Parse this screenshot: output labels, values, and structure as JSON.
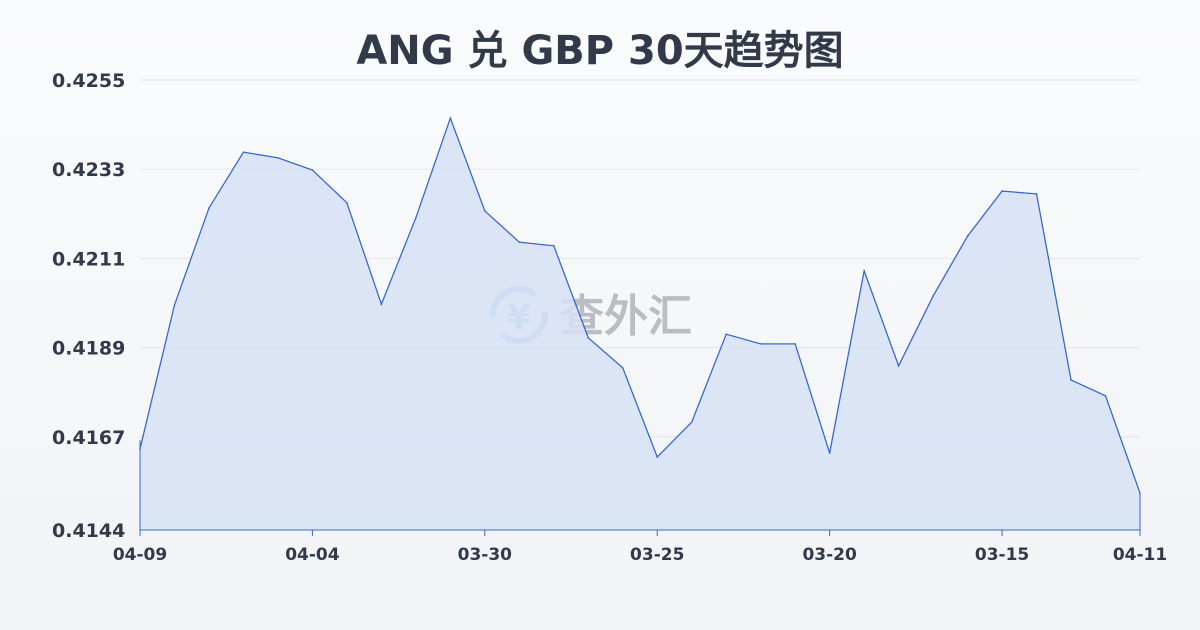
{
  "title": "ANG 兑 GBP 30天趋势图",
  "watermark": "查外汇",
  "colors": {
    "line": "#3a67c9",
    "fill": "#d6e2f6",
    "grid": "#e3e6ea",
    "text": "#323a4a"
  },
  "chart_data": {
    "type": "area",
    "title": "ANG 兑 GBP 30天趋势图",
    "xlabel": "",
    "ylabel": "",
    "ylim": [
      0.4144,
      0.4255
    ],
    "yticks": [
      "0.4144",
      "0.4167",
      "0.4189",
      "0.4211",
      "0.4233",
      "0.4255"
    ],
    "xtick_labels": [
      {
        "index": 0,
        "label": "04-09"
      },
      {
        "index": 5,
        "label": "04-04"
      },
      {
        "index": 10,
        "label": "03-30"
      },
      {
        "index": 15,
        "label": "03-25"
      },
      {
        "index": 20,
        "label": "03-20"
      },
      {
        "index": 25,
        "label": "03-15"
      },
      {
        "index": 29,
        "label": "04-11"
      }
    ],
    "grid": "horizontal",
    "values": [
      0.4164,
      0.41995,
      0.42234,
      0.42372,
      0.42358,
      0.42328,
      0.42247,
      0.41997,
      0.4221,
      0.42456,
      0.42227,
      0.4215,
      0.42141,
      0.41914,
      0.4184,
      0.4162,
      0.41706,
      0.41923,
      0.41899,
      0.41899,
      0.4163,
      0.42079,
      0.41845,
      0.42017,
      0.42165,
      0.42276,
      0.42269,
      0.4181,
      0.41771,
      0.41531
    ]
  }
}
